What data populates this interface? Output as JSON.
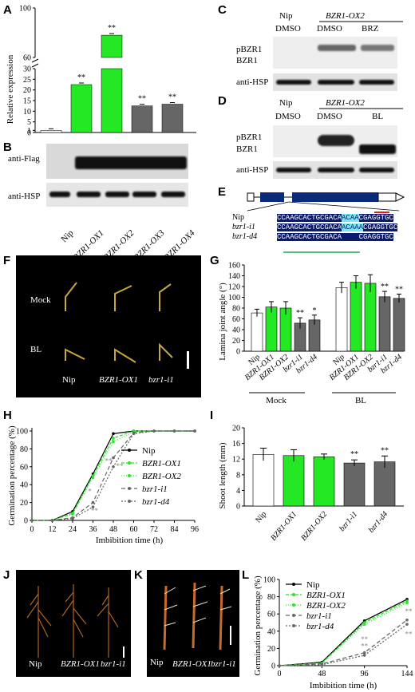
{
  "letters": {
    "A": "A",
    "B": "B",
    "C": "C",
    "D": "D",
    "E": "E",
    "F": "F",
    "G": "G",
    "H": "H",
    "I": "I",
    "J": "J",
    "K": "K",
    "L": "L"
  },
  "colors": {
    "green": "#23e823",
    "dark": "#666666",
    "white": "#ffffff",
    "cyan": "#77e6f0",
    "navy": "#0a1a6e",
    "red": "#e21b1b",
    "darkgreen": "#18a94a"
  },
  "panelA": {
    "ylabel": "Relative expression",
    "yticks_low": [
      "0",
      "1",
      "5",
      "10",
      "15",
      "20",
      "25",
      "30"
    ],
    "yticks_high": [
      "60",
      "100"
    ],
    "categories": [
      "Nip",
      "BZR1-OX1",
      "BZR1-OX2",
      "BZR1-OX3",
      "BZR1-OX4"
    ],
    "star": "**",
    "chart_data": {
      "type": "bar",
      "categories": [
        "Nip",
        "BZR1-OX1",
        "BZR1-OX2",
        "BZR1-OX3",
        "BZR1-OX4"
      ],
      "values": [
        1,
        22.5,
        78,
        12.5,
        13.3
      ],
      "ylabel": "Relative expression"
    }
  },
  "panelB": {
    "rows": [
      "anti-Flag",
      "anti-HSP"
    ]
  },
  "panelC": {
    "col1": "Nip",
    "col2": "BZR1-OX2",
    "treat": [
      "DMSO",
      "DMSO",
      "BRZ"
    ],
    "rows": [
      "pBZR1",
      "BZR1",
      "anti-HSP"
    ]
  },
  "panelD": {
    "col1": "Nip",
    "col2": "BZR1-OX2",
    "treat": [
      "DMSO",
      "DMSO",
      "BL"
    ],
    "rows": [
      "pBZR1",
      "BZR1",
      "anti-HSP"
    ]
  },
  "panelE": {
    "rows": [
      {
        "name": "Nip",
        "pre": "CCAAGCACTGCGACA",
        "mid": "ACAA",
        "post": "CGAGGTGC"
      },
      {
        "name": "bzr1-i1",
        "pre": "CCAAGCACTGCGACA",
        "mid": "ACAAA",
        "post": "CGAGGTGC"
      },
      {
        "name": "bzr1-d4",
        "pre": "CCAAGCACTGCGACA",
        "mid": "....",
        "post": "CGAGGTGC"
      }
    ]
  },
  "panelF": {
    "rows": [
      "Mock",
      "BL"
    ],
    "cols": [
      "Nip",
      "BZR1-OX1",
      "bzr1-i1"
    ]
  },
  "panelG": {
    "ylabel": "Lamina joint angle (°)",
    "yticks": [
      "0",
      "20",
      "40",
      "60",
      "80",
      "100",
      "120",
      "140",
      "160"
    ],
    "groups": [
      "Mock",
      "BL"
    ],
    "categories": [
      "Nip",
      "BZR1-OX1",
      "BZR1-OX2",
      "bzr1-i1",
      "bzr1-d4"
    ],
    "chart_data": {
      "type": "bar",
      "categories": [
        "Nip",
        "BZR1-OX1",
        "BZR1-OX2",
        "bzr1-i1",
        "bzr1-d4"
      ],
      "series": [
        {
          "name": "Mock",
          "values": [
            71,
            82,
            80,
            52,
            58
          ]
        },
        {
          "name": "BL",
          "values": [
            118,
            128,
            126,
            101,
            98
          ]
        }
      ],
      "ylim": [
        0,
        160
      ],
      "ylabel": "Lamina joint angle (°)"
    },
    "stars": {
      "mock_i1": "**",
      "mock_d4": "*",
      "bl_i1": "**",
      "bl_d4": "**"
    }
  },
  "panelH": {
    "ylabel": "Germination percentage (%)",
    "xlabel": "Imbibition time (h)",
    "xticks": [
      "0",
      "12",
      "24",
      "36",
      "48",
      "60",
      "72",
      "84",
      "96"
    ],
    "yticks": [
      "0",
      "20",
      "40",
      "60",
      "80",
      "100"
    ],
    "legend": [
      "Nip",
      "BZR1-OX1",
      "BZR1-OX2",
      "bzr1-i1",
      "bzr1-d4"
    ],
    "chart_data": {
      "type": "line",
      "x": [
        0,
        12,
        24,
        36,
        48,
        60,
        72,
        84,
        96
      ],
      "series": [
        {
          "name": "Nip",
          "values": [
            0,
            0,
            10,
            52,
            97,
            100,
            100,
            100,
            100
          ]
        },
        {
          "name": "BZR1-OX1",
          "values": [
            0,
            0,
            8,
            50,
            92,
            100,
            100,
            100,
            100
          ]
        },
        {
          "name": "BZR1-OX2",
          "values": [
            0,
            0,
            7,
            48,
            88,
            99,
            100,
            100,
            100
          ]
        },
        {
          "name": "bzr1-i1",
          "values": [
            0,
            0,
            3,
            20,
            70,
            98,
            100,
            100,
            100
          ]
        },
        {
          "name": "bzr1-d4",
          "values": [
            0,
            0,
            2,
            15,
            60,
            97,
            100,
            100,
            100
          ]
        }
      ],
      "ylim": [
        0,
        100
      ]
    }
  },
  "panelI": {
    "ylabel": "Shoot length (mm)",
    "yticks": [
      "0",
      "4",
      "8",
      "12",
      "16",
      "20"
    ],
    "categories": [
      "Nip",
      "BZR1-OX1",
      "BZR1-OX2",
      "bzr1-i1",
      "bzr1-d4"
    ],
    "chart_data": {
      "type": "bar",
      "categories": [
        "Nip",
        "BZR1-OX1",
        "BZR1-OX2",
        "bzr1-i1",
        "bzr1-d4"
      ],
      "values": [
        13.2,
        12.9,
        12.6,
        11.0,
        11.3
      ],
      "ylim": [
        0,
        20
      ],
      "ylabel": "Shoot length (mm)"
    },
    "stars": [
      "**",
      "**"
    ]
  },
  "panelJ": {
    "labels": [
      "Nip",
      "BZR1-OX1",
      "bzr1-i1"
    ]
  },
  "panelK": {
    "labels": [
      "Nip",
      "BZR1-OX1",
      "bzr1-i1"
    ]
  },
  "panelL": {
    "ylabel": "Germination percentage (%)",
    "xlabel": "Imbibition time (h)",
    "xticks": [
      "0",
      "48",
      "96",
      "144"
    ],
    "yticks": [
      "0",
      "20",
      "40",
      "60",
      "80",
      "100"
    ],
    "legend": [
      "Nip",
      "BZR1-OX1",
      "BZR1-OX2",
      "bzr1-i1",
      "bzr1-d4"
    ],
    "chart_data": {
      "type": "line",
      "x": [
        0,
        48,
        96,
        144
      ],
      "series": [
        {
          "name": "Nip",
          "values": [
            0,
            4,
            52,
            77
          ]
        },
        {
          "name": "BZR1-OX1",
          "values": [
            0,
            3,
            50,
            75
          ]
        },
        {
          "name": "BZR1-OX2",
          "values": [
            0,
            3,
            48,
            73
          ]
        },
        {
          "name": "bzr1-i1",
          "values": [
            0,
            2,
            15,
            53
          ]
        },
        {
          "name": "bzr1-d4",
          "values": [
            0,
            1,
            12,
            48
          ]
        }
      ],
      "ylim": [
        0,
        100
      ]
    }
  }
}
